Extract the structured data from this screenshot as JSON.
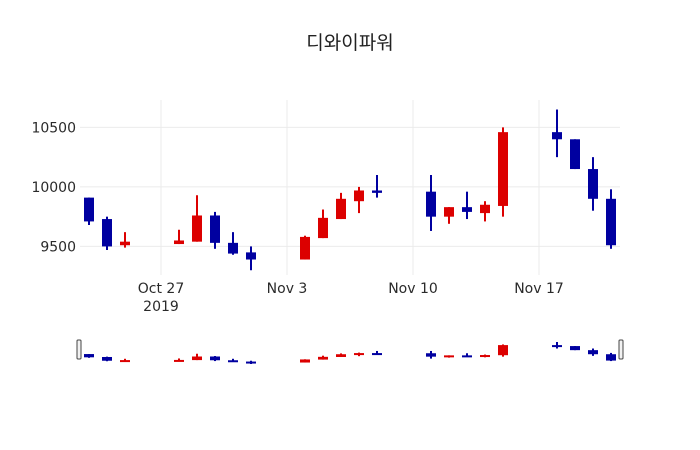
{
  "chart_data": {
    "type": "candlestick",
    "title": "디와이파워",
    "xlabel": "",
    "ylabel": "",
    "ylim": [
      9260,
      10730
    ],
    "yticks": [
      9500,
      10000,
      10500
    ],
    "ytick_labels": [
      "9500",
      "10000",
      "10500"
    ],
    "xticks": [
      {
        "date": "2019-10-27",
        "label": "Oct 27",
        "sublabel": "2019"
      },
      {
        "date": "2019-11-03",
        "label": "Nov 3",
        "sublabel": ""
      },
      {
        "date": "2019-11-10",
        "label": "Nov 10",
        "sublabel": ""
      },
      {
        "date": "2019-11-17",
        "label": "Nov 17",
        "sublabel": ""
      }
    ],
    "xrange": [
      "2019-10-22T12:00",
      "2019-11-21T12:00"
    ],
    "grid": true,
    "rangeslider": true,
    "legend": false,
    "colors": {
      "increasing": "#dc0000",
      "decreasing": "#0000a0",
      "grid": "#ebebeb",
      "slider_border": "#444444"
    },
    "candles": [
      {
        "date": "2019-10-23",
        "open": 9910,
        "high": 9910,
        "low": 9680,
        "close": 9710
      },
      {
        "date": "2019-10-24",
        "open": 9730,
        "high": 9750,
        "low": 9470,
        "close": 9500
      },
      {
        "date": "2019-10-25",
        "open": 9510,
        "high": 9620,
        "low": 9490,
        "close": 9540
      },
      {
        "date": "2019-10-28",
        "open": 9520,
        "high": 9640,
        "low": 9520,
        "close": 9550
      },
      {
        "date": "2019-10-29",
        "open": 9540,
        "high": 9930,
        "low": 9540,
        "close": 9760
      },
      {
        "date": "2019-10-30",
        "open": 9760,
        "high": 9790,
        "low": 9480,
        "close": 9530
      },
      {
        "date": "2019-10-31",
        "open": 9530,
        "high": 9620,
        "low": 9430,
        "close": 9440
      },
      {
        "date": "2019-11-01",
        "open": 9450,
        "high": 9500,
        "low": 9300,
        "close": 9390
      },
      {
        "date": "2019-11-04",
        "open": 9390,
        "high": 9590,
        "low": 9390,
        "close": 9580
      },
      {
        "date": "2019-11-05",
        "open": 9570,
        "high": 9810,
        "low": 9570,
        "close": 9740
      },
      {
        "date": "2019-11-06",
        "open": 9730,
        "high": 9950,
        "low": 9730,
        "close": 9900
      },
      {
        "date": "2019-11-07",
        "open": 9880,
        "high": 10000,
        "low": 9780,
        "close": 9970
      },
      {
        "date": "2019-11-08",
        "open": 9970,
        "high": 10100,
        "low": 9910,
        "close": 9950
      },
      {
        "date": "2019-11-11",
        "open": 9960,
        "high": 10100,
        "low": 9630,
        "close": 9750
      },
      {
        "date": "2019-11-12",
        "open": 9750,
        "high": 9830,
        "low": 9690,
        "close": 9830
      },
      {
        "date": "2019-11-13",
        "open": 9830,
        "high": 9960,
        "low": 9730,
        "close": 9790
      },
      {
        "date": "2019-11-14",
        "open": 9780,
        "high": 9880,
        "low": 9710,
        "close": 9850
      },
      {
        "date": "2019-11-15",
        "open": 9840,
        "high": 10500,
        "low": 9750,
        "close": 10460
      },
      {
        "date": "2019-11-18",
        "open": 10460,
        "high": 10650,
        "low": 10250,
        "close": 10400
      },
      {
        "date": "2019-11-19",
        "open": 10400,
        "high": 10400,
        "low": 10150,
        "close": 10150
      },
      {
        "date": "2019-11-20",
        "open": 10150,
        "high": 10250,
        "low": 9800,
        "close": 9900
      },
      {
        "date": "2019-11-21",
        "open": 9900,
        "high": 9980,
        "low": 9480,
        "close": 9510
      }
    ]
  }
}
